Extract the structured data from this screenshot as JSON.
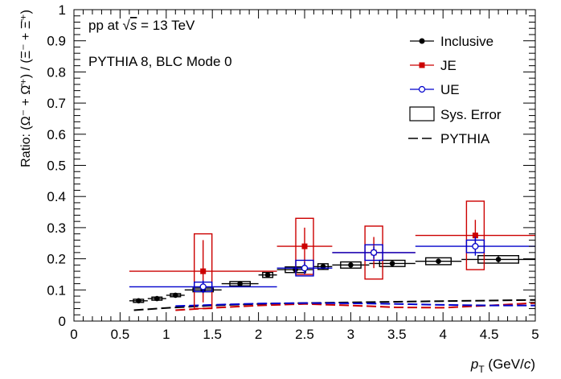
{
  "chart_data": {
    "type": "scatter",
    "title": "",
    "xlabel_main": "p",
    "xlabel_sub": "T",
    "xlabel_unit_pre": " (GeV/",
    "xlabel_unit_c": "c",
    "xlabel_unit_post": ")",
    "ylabel": "Ratio: (Ω⁻ + Ω̄⁺) / (Ξ⁻ + Ξ̄⁺)",
    "xlim": [
      0,
      5
    ],
    "ylim": [
      0,
      1
    ],
    "xticks": [
      0,
      0.5,
      1,
      1.5,
      2,
      2.5,
      3,
      3.5,
      4,
      4.5,
      5
    ],
    "xtick_labels": [
      "0",
      "0.5",
      "1",
      "1.5",
      "2",
      "2.5",
      "3",
      "3.5",
      "4",
      "4.5",
      "5"
    ],
    "yticks": [
      0,
      0.1,
      0.2,
      0.3,
      0.4,
      0.5,
      0.6,
      0.7,
      0.8,
      0.9,
      1
    ],
    "ytick_labels": [
      "0",
      "0.1",
      "0.2",
      "0.3",
      "0.4",
      "0.5",
      "0.6",
      "0.7",
      "0.8",
      "0.9",
      "1"
    ],
    "annotations": {
      "collision_prefix": "pp at ",
      "collision_sqrt": "√",
      "collision_s": "s",
      "collision_suffix": " = 13 TeV",
      "generator": "PYTHIA 8, BLC Mode 0"
    },
    "legend": {
      "position": "top-right",
      "entries": [
        "Inclusive",
        "JE",
        "UE",
        "Sys. Error",
        "PYTHIA"
      ]
    },
    "colors": {
      "inclusive": "#000000",
      "je": "#cc0000",
      "ue": "#0000cc"
    },
    "series": [
      {
        "name": "Inclusive",
        "x": [
          0.7,
          0.9,
          1.1,
          1.4,
          1.8,
          2.1,
          2.4,
          2.7,
          3.0,
          3.45,
          3.95,
          4.6
        ],
        "xerr": [
          0.1,
          0.1,
          0.1,
          0.2,
          0.2,
          0.1,
          0.2,
          0.1,
          0.2,
          0.25,
          0.25,
          0.4
        ],
        "y": [
          0.065,
          0.072,
          0.083,
          0.1,
          0.12,
          0.148,
          0.165,
          0.175,
          0.18,
          0.185,
          0.192,
          0.198
        ],
        "yerr": [
          0.003,
          0.003,
          0.003,
          0.004,
          0.004,
          0.005,
          0.005,
          0.005,
          0.006,
          0.007,
          0.008,
          0.01
        ],
        "syserr": [
          0.005,
          0.005,
          0.005,
          0.006,
          0.007,
          0.008,
          0.009,
          0.009,
          0.01,
          0.01,
          0.011,
          0.012
        ]
      },
      {
        "name": "JE",
        "x": [
          1.4,
          2.5,
          3.25,
          4.35
        ],
        "xerr": [
          0.8,
          0.3,
          0.45,
          0.65
        ],
        "y": [
          0.16,
          0.24,
          0.22,
          0.275
        ],
        "yerr": [
          0.1,
          0.06,
          0.05,
          0.05
        ],
        "syserr": [
          0.12,
          0.09,
          0.085,
          0.11
        ]
      },
      {
        "name": "UE",
        "x": [
          1.4,
          2.5,
          3.25,
          4.35
        ],
        "xerr": [
          0.8,
          0.3,
          0.45,
          0.65
        ],
        "y": [
          0.11,
          0.17,
          0.22,
          0.24
        ],
        "yerr": [
          0.02,
          0.02,
          0.02,
          0.03
        ],
        "syserr": [
          0.015,
          0.025,
          0.025,
          0.02
        ]
      }
    ],
    "pythia": [
      {
        "name": "Inclusive",
        "x": [
          0.65,
          1.0,
          1.5,
          2.0,
          2.5,
          3.0,
          3.5,
          4.0,
          4.5,
          5.0
        ],
        "y": [
          0.035,
          0.042,
          0.05,
          0.055,
          0.058,
          0.06,
          0.062,
          0.064,
          0.066,
          0.068
        ]
      },
      {
        "name": "JE",
        "x": [
          1.1,
          1.5,
          2.0,
          2.5,
          3.0,
          3.5,
          4.0,
          4.5,
          5.0
        ],
        "y": [
          0.035,
          0.042,
          0.05,
          0.055,
          0.05,
          0.044,
          0.043,
          0.05,
          0.058
        ]
      },
      {
        "name": "UE",
        "x": [
          1.1,
          1.5,
          2.0,
          2.5,
          3.0,
          3.5,
          4.0,
          4.5,
          5.0
        ],
        "y": [
          0.048,
          0.052,
          0.056,
          0.058,
          0.057,
          0.055,
          0.052,
          0.05,
          0.05
        ]
      }
    ]
  }
}
